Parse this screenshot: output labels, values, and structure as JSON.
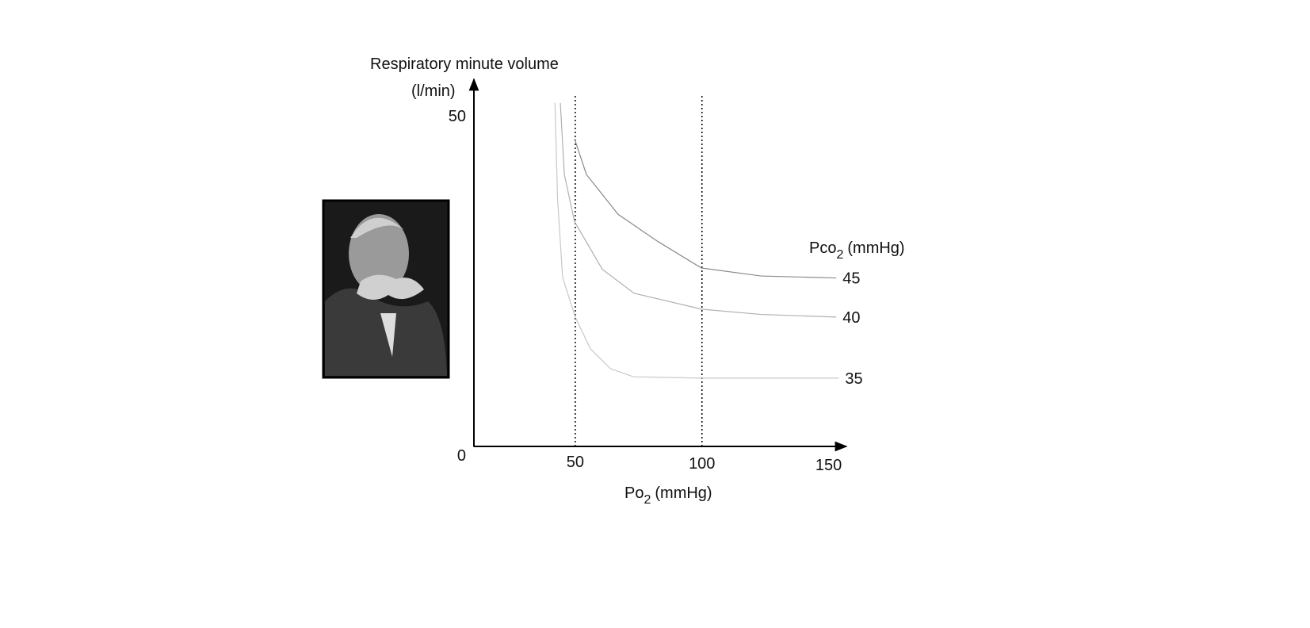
{
  "chart_data": {
    "type": "line",
    "ylabel": [
      "Respiratory minute volume",
      "(l/min)"
    ],
    "xlabel": {
      "main": "Po",
      "sub": "2",
      "rest": "(mmHg)"
    },
    "legend_title": {
      "main": "Pco",
      "sub": "2",
      "rest": "(mmHg)"
    },
    "xlim": [
      10,
      157
    ],
    "ylim": [
      0,
      55
    ],
    "xticks": [
      50,
      100,
      150
    ],
    "yticks": [
      0,
      50
    ],
    "vlines": [
      50,
      100
    ],
    "series": [
      {
        "name": "45",
        "color": "#8a8a8a",
        "x": [
          49.7,
          54.4,
          66.9,
          82.6,
          99.8,
          123.3,
          153
        ],
        "values": [
          46.4,
          41,
          35,
          30.9,
          26.9,
          25.7,
          25.4
        ]
      },
      {
        "name": "40",
        "color": "#b0b0b0",
        "x": [
          44.1,
          45.7,
          49.7,
          60.7,
          73.2,
          99.8,
          123.3,
          153
        ],
        "values": [
          51.8,
          41,
          33.9,
          26.7,
          23.1,
          20.7,
          19.9,
          19.5
        ]
      },
      {
        "name": "35",
        "color": "#c8c8c8",
        "x": [
          42,
          43,
          45,
          50,
          56,
          64,
          73,
          100,
          154
        ],
        "values": [
          51.8,
          37.4,
          25.5,
          19.5,
          14.7,
          11.7,
          10.5,
          10.3,
          10.3
        ]
      }
    ]
  }
}
